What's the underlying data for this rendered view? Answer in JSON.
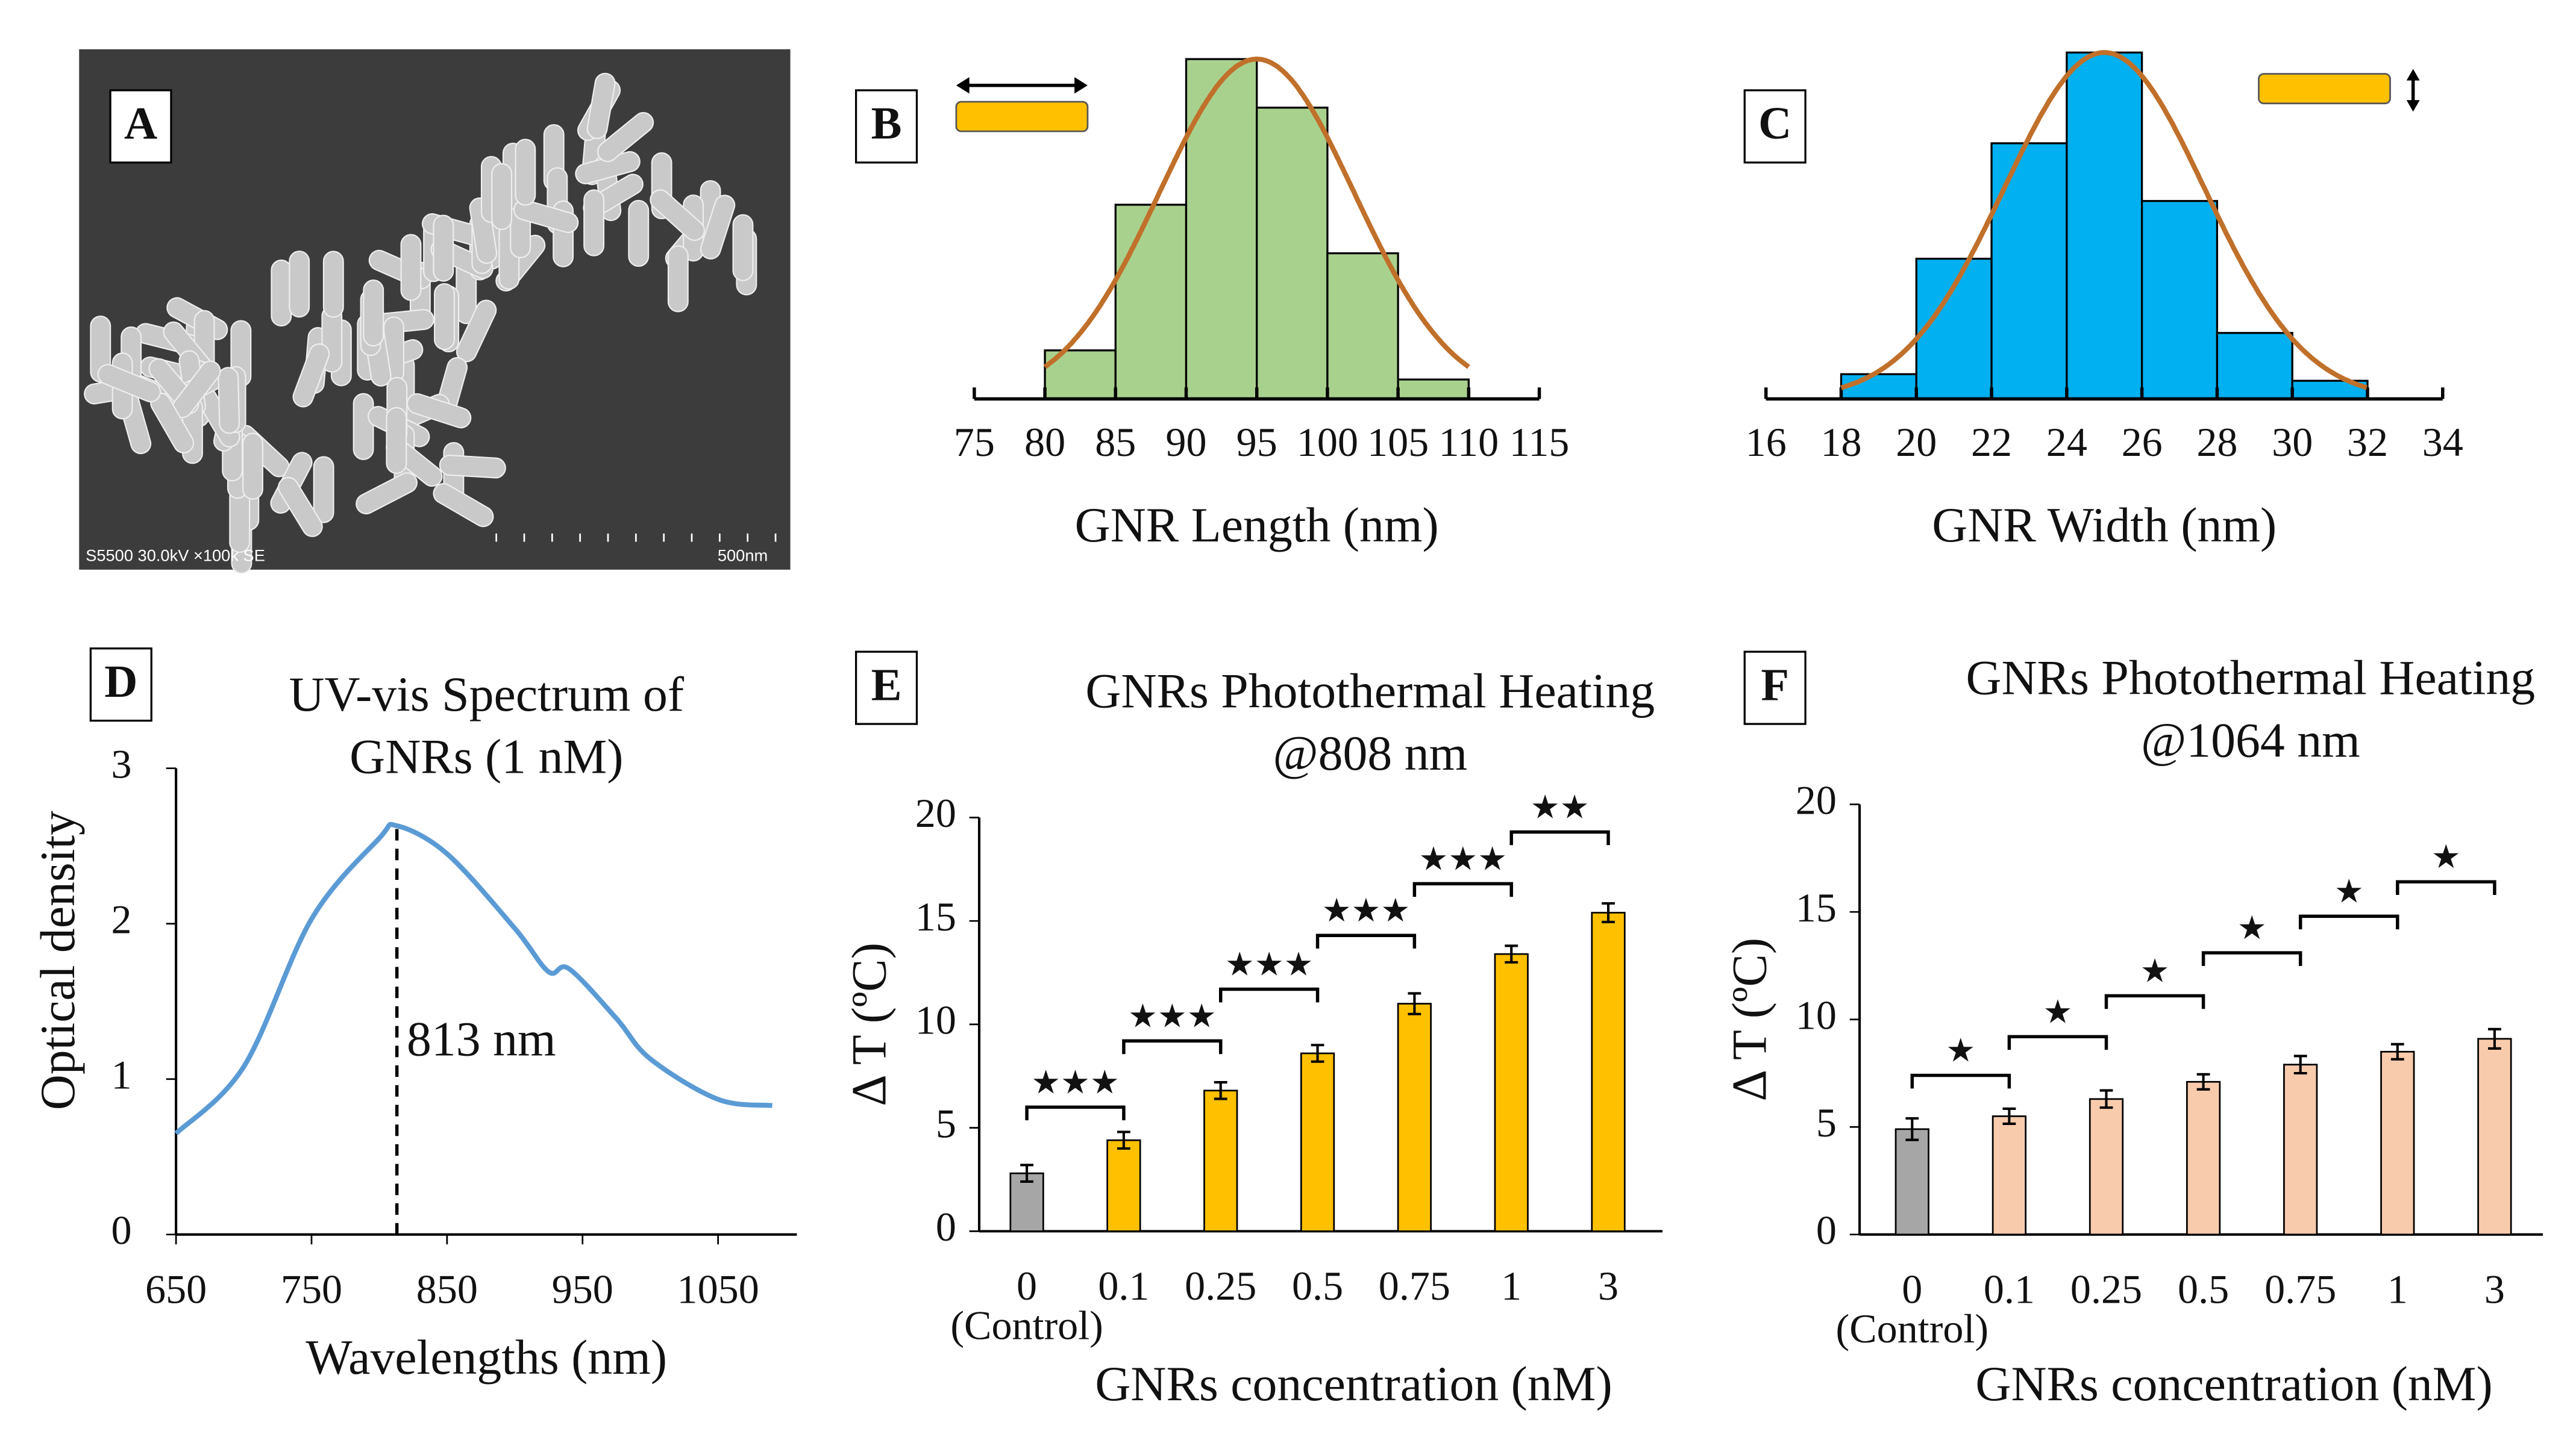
{
  "chart_data": [
    {
      "type": "image",
      "label": "A",
      "caption": "S5500 30.0kV ×100k SE",
      "scale_label": "500nm"
    },
    {
      "type": "histogram",
      "label": "B",
      "xlabel": "GNR Length (nm)",
      "bins": [
        80,
        85,
        90,
        95,
        100,
        105,
        110
      ],
      "values": [
        3,
        12,
        21,
        18,
        9,
        1.2
      ],
      "color": "#a9d18e",
      "xlim": [
        75,
        115
      ],
      "xticks": [
        75,
        80,
        85,
        90,
        95,
        100,
        105,
        110,
        115
      ],
      "ylim": [
        0,
        21
      ],
      "fit": {
        "mean": 95,
        "sd": 6.9,
        "peak": 21,
        "color": "#c0702a"
      }
    },
    {
      "type": "histogram",
      "label": "C",
      "xlabel": "GNR Width (nm)",
      "bins": [
        18,
        20,
        22,
        24,
        26,
        28,
        30,
        32
      ],
      "values": [
        1.5,
        8.5,
        15.5,
        21,
        12,
        4,
        1.1
      ],
      "color": "#00b0f0",
      "xlim": [
        16,
        34
      ],
      "xticks": [
        16,
        18,
        20,
        22,
        24,
        26,
        28,
        30,
        32,
        34
      ],
      "ylim": [
        0,
        21
      ],
      "fit": {
        "mean": 25,
        "sd": 2.67,
        "peak": 21,
        "color": "#c0702a"
      }
    },
    {
      "type": "line",
      "label": "D",
      "title": [
        "UV-vis Spectrum of",
        "GNRs (1 nM)"
      ],
      "xlabel": "Wavelengths (nm)",
      "ylabel": "Optical density",
      "x": [
        650,
        700,
        750,
        800,
        813,
        850,
        900,
        925,
        940,
        975,
        1000,
        1050,
        1090
      ],
      "values": [
        0.65,
        1.08,
        2.03,
        2.55,
        2.63,
        2.45,
        1.97,
        1.69,
        1.71,
        1.39,
        1.13,
        0.87,
        0.83
      ],
      "color": "#5b9bd5",
      "xlim": [
        650,
        1090
      ],
      "xticks": [
        650,
        750,
        850,
        950,
        1050
      ],
      "ylim": [
        0,
        3
      ],
      "yticks": [
        0,
        1,
        2,
        3
      ],
      "annotation": {
        "x": 813,
        "text": "813 nm"
      }
    },
    {
      "type": "bar",
      "label": "E",
      "title": [
        "GNRs Photothermal Heating",
        "@808 nm"
      ],
      "xlabel": "GNRs concentration (nM)",
      "ylabel": "Δ T (ºC)",
      "categories": [
        "0",
        "0.1",
        "0.25",
        "0.5",
        "0.75",
        "1",
        "3"
      ],
      "category_note": "(Control)",
      "values": [
        2.8,
        4.4,
        6.8,
        8.6,
        11,
        13.4,
        15.4
      ],
      "errors": [
        0.4,
        0.4,
        0.4,
        0.4,
        0.5,
        0.4,
        0.45
      ],
      "colors": [
        "#a6a6a6",
        "#ffc000",
        "#ffc000",
        "#ffc000",
        "#ffc000",
        "#ffc000",
        "#ffc000"
      ],
      "ylim": [
        0,
        20
      ],
      "yticks": [
        0,
        5,
        10,
        15,
        20
      ],
      "significance": [
        {
          "from": 0,
          "to": 1,
          "y": 6,
          "label": "★★★"
        },
        {
          "from": 1,
          "to": 2,
          "y": 9.2,
          "label": "★★★"
        },
        {
          "from": 2,
          "to": 3,
          "y": 11.7,
          "label": "★★★"
        },
        {
          "from": 3,
          "to": 4,
          "y": 14.3,
          "label": "★★★"
        },
        {
          "from": 4,
          "to": 5,
          "y": 16.8,
          "label": "★★★"
        },
        {
          "from": 5,
          "to": 6,
          "y": 19.3,
          "label": "★★"
        }
      ]
    },
    {
      "type": "bar",
      "label": "F",
      "title": [
        "GNRs Photothermal Heating",
        "@1064 nm"
      ],
      "xlabel": "GNRs concentration (nM)",
      "ylabel": "Δ T (ºC)",
      "categories": [
        "0",
        "0.1",
        "0.25",
        "0.5",
        "0.75",
        "1",
        "3"
      ],
      "category_note": "(Control)",
      "values": [
        4.9,
        5.5,
        6.3,
        7.1,
        7.9,
        8.5,
        9.1
      ],
      "errors": [
        0.5,
        0.35,
        0.4,
        0.35,
        0.4,
        0.35,
        0.45
      ],
      "colors": [
        "#a6a6a6",
        "#f8cbad",
        "#f8cbad",
        "#f8cbad",
        "#f8cbad",
        "#f8cbad",
        "#f8cbad"
      ],
      "ylim": [
        0,
        20
      ],
      "yticks": [
        0,
        5,
        10,
        15,
        20
      ],
      "significance": [
        {
          "from": 0,
          "to": 1,
          "y": 7.4,
          "label": "★"
        },
        {
          "from": 1,
          "to": 2,
          "y": 9.2,
          "label": "★"
        },
        {
          "from": 2,
          "to": 3,
          "y": 11.1,
          "label": "★"
        },
        {
          "from": 3,
          "to": 4,
          "y": 13.1,
          "label": "★"
        },
        {
          "from": 4,
          "to": 5,
          "y": 14.8,
          "label": "★"
        },
        {
          "from": 5,
          "to": 6,
          "y": 16.4,
          "label": "★"
        }
      ]
    }
  ]
}
